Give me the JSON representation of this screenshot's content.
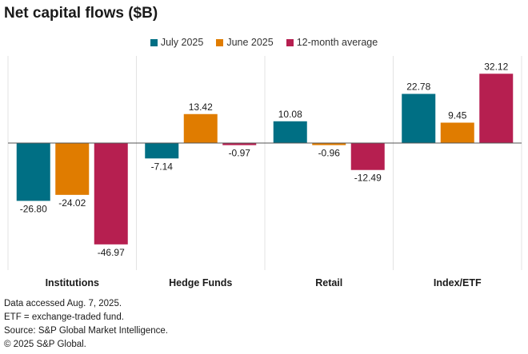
{
  "chart_data": {
    "type": "bar",
    "title": "Net capital flows ($B)",
    "categories": [
      "Institutions",
      "Hedge Funds",
      "Retail",
      "Index/ETF"
    ],
    "series": [
      {
        "name": "July 2025",
        "color": "#006f84",
        "values": [
          -26.8,
          -7.14,
          10.08,
          22.78
        ],
        "labels": [
          "-26.80",
          "-7.14",
          "10.08",
          "22.78"
        ]
      },
      {
        "name": "June 2025",
        "color": "#e07c00",
        "values": [
          -24.02,
          13.42,
          -0.96,
          9.45
        ],
        "labels": [
          "-24.02",
          "13.42",
          "-0.96",
          "9.45"
        ]
      },
      {
        "name": "12-month average",
        "color": "#b61f50",
        "values": [
          -46.97,
          -0.97,
          -12.49,
          32.12
        ],
        "labels": [
          "-46.97",
          "-0.97",
          "-12.49",
          "32.12"
        ]
      }
    ],
    "ylim": [
      -58,
      38
    ],
    "xlabel": "",
    "ylabel": "",
    "legend_position": "top-center"
  },
  "footnotes": [
    "Data accessed Aug. 7, 2025.",
    "ETF = exchange-traded fund.",
    "Source: S&P Global Market Intelligence.",
    "© 2025 S&P Global."
  ]
}
